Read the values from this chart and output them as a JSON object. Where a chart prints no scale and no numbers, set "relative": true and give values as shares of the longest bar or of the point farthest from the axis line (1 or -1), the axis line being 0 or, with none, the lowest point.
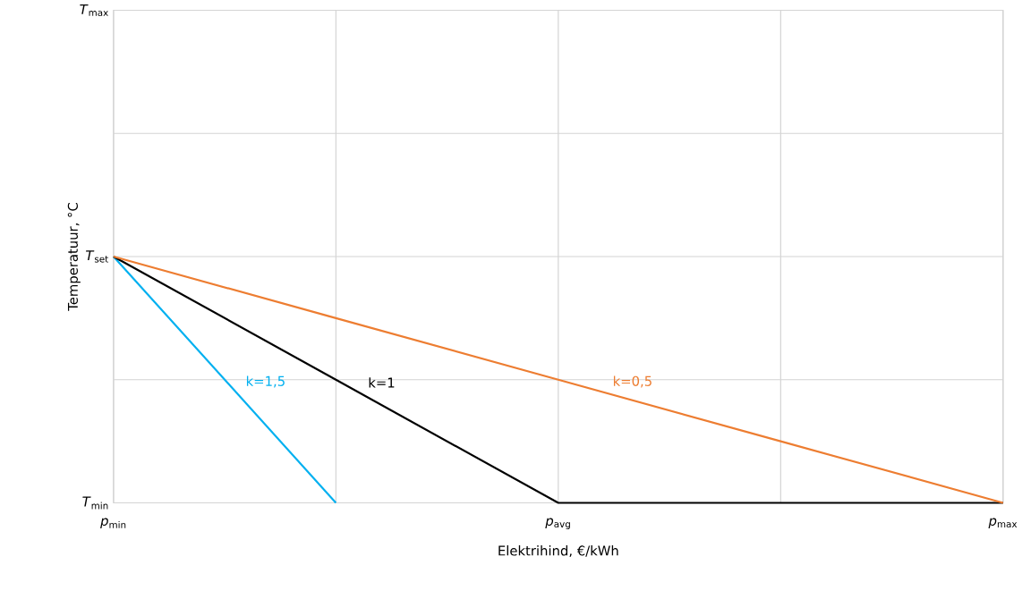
{
  "chart_data": {
    "type": "line",
    "xlabel": "Elektrihind, €/kWh",
    "ylabel": "Temperatuur, °C",
    "categories": [
      "*p*$_{min}$",
      null,
      "*p*$_{avg}$",
      null,
      "*p*$_{max}$"
    ],
    "relative": true,
    "annotations": [
      "*T*$_{min}$",
      "*T*$_{set}$",
      "*T*$_{max}$"
    ],
    "grid": true,
    "marker": "none",
    "line_style": "solid",
    "series": [
      {
        "name": "k=1,5",
        "color": "#00b0f0",
        "values": [
          1,
          0,
          null,
          null,
          null
        ]
      },
      {
        "name": "k=1",
        "color": "#000000",
        "values": [
          1,
          0.5,
          0,
          0,
          0
        ]
      },
      {
        "name": "k=0,5",
        "color": "#ed7d31",
        "values": [
          1,
          0.75,
          0.5,
          0.25,
          0
        ]
      }
    ]
  }
}
